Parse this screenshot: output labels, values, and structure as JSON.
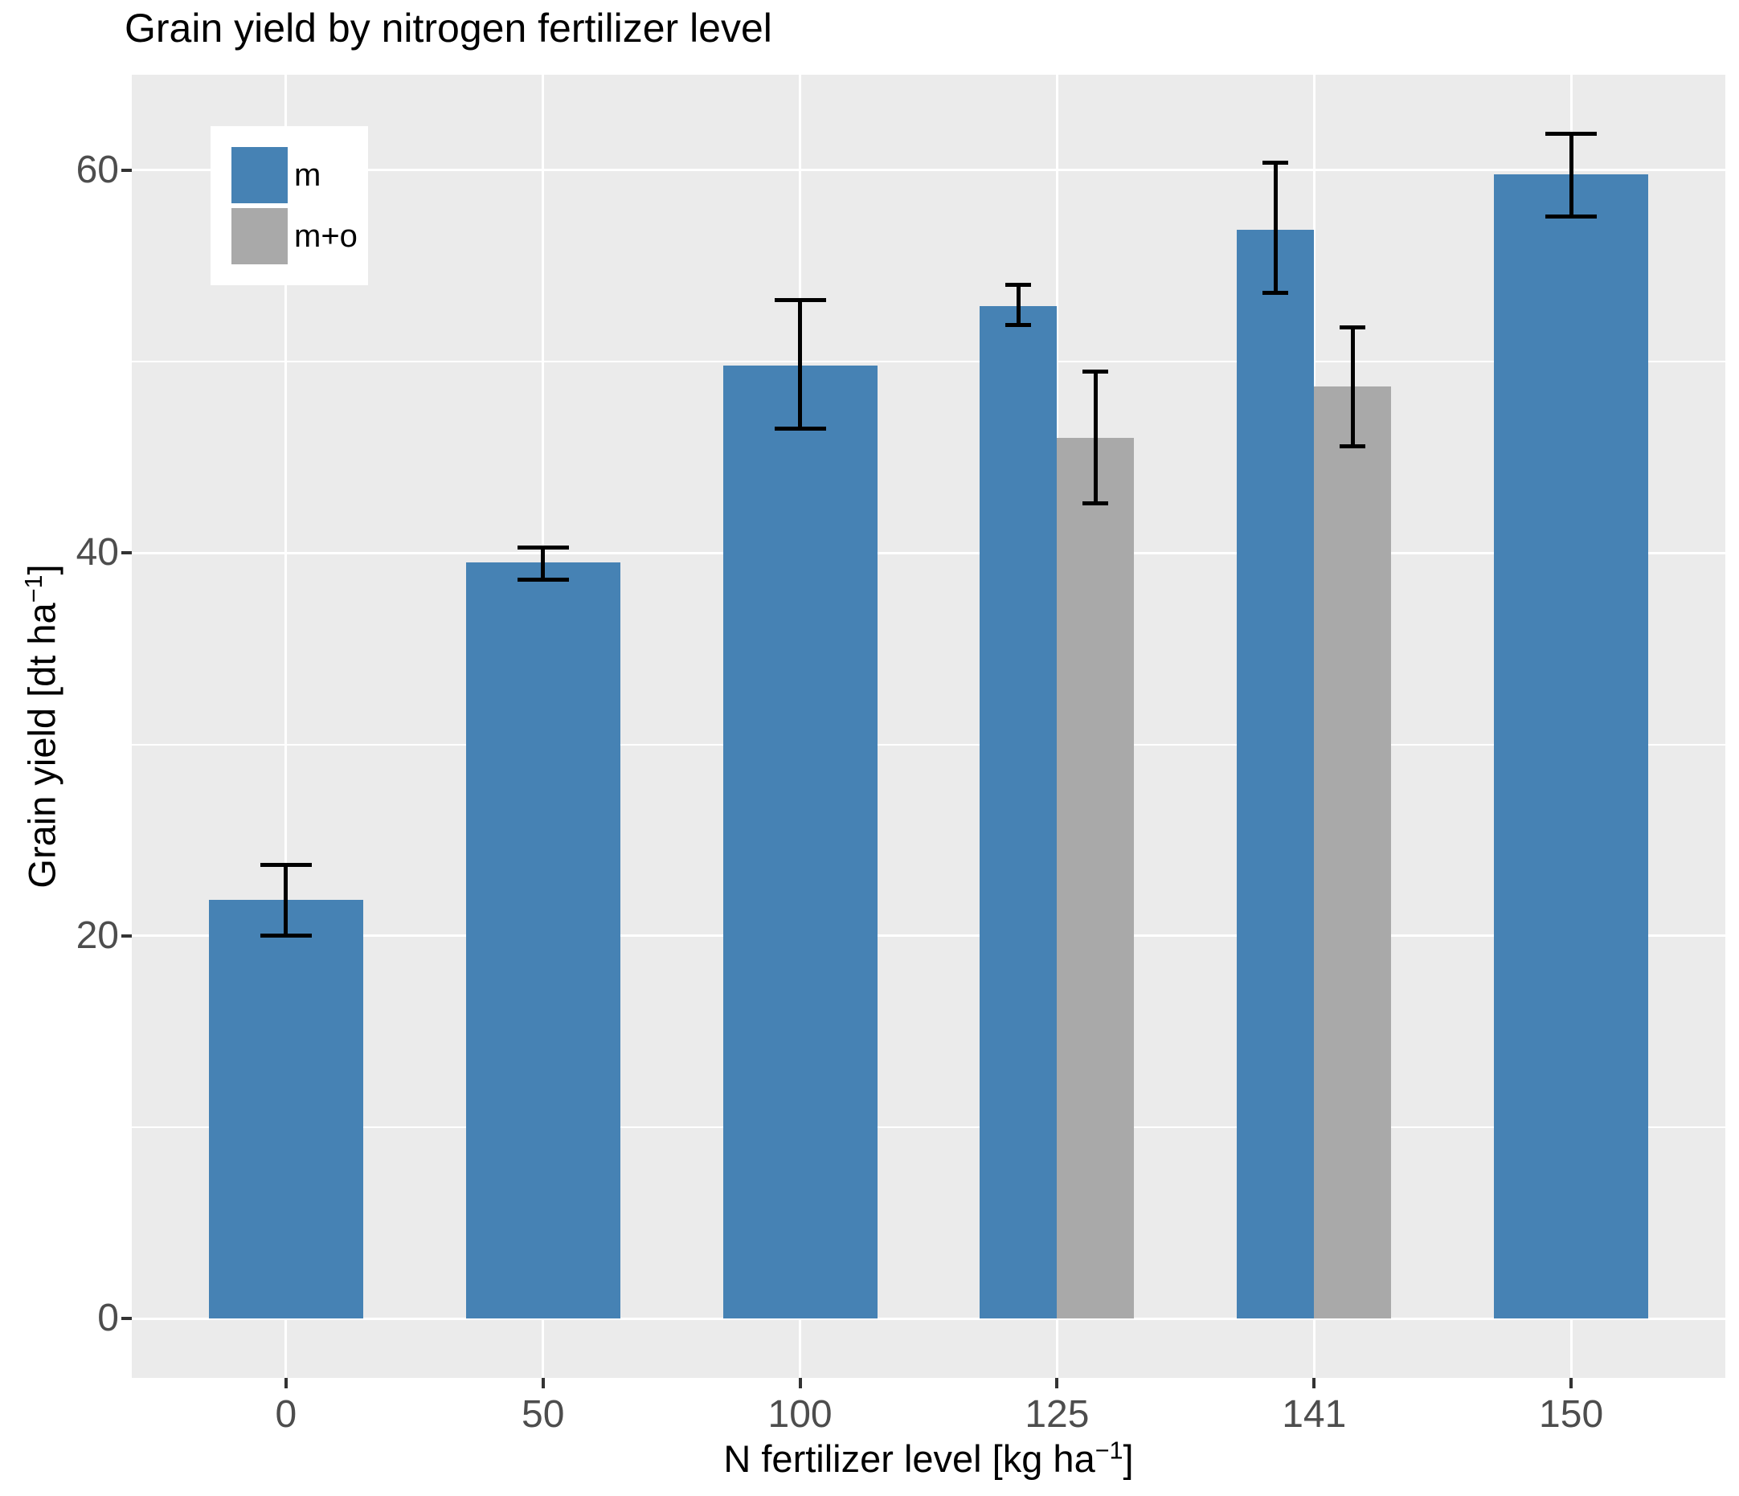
{
  "title": "Grain yield by nitrogen fertilizer level",
  "y_axis": {
    "title_prefix": "Grain yield [dt ha",
    "title_sup": "−1",
    "title_suffix": "]",
    "tick_labels": [
      "0",
      "20",
      "40",
      "60"
    ],
    "tick_values": [
      0,
      20,
      40,
      60
    ],
    "minor_values": [
      10,
      30,
      50
    ]
  },
  "x_axis": {
    "title_prefix": "N fertilizer level [kg ha",
    "title_sup": "−1",
    "title_suffix": "]",
    "tick_labels": [
      "0",
      "50",
      "100",
      "125",
      "141",
      "150"
    ]
  },
  "legend": {
    "items": [
      {
        "label": "m",
        "color": "#4682B4"
      },
      {
        "label": "m+o",
        "color": "#A9A9A9"
      }
    ]
  },
  "colors": {
    "bar_blue": "#4682B4",
    "bar_gray": "#A9A9A9",
    "panel_bg": "#EBEBEB",
    "grid": "#FFFFFF",
    "error_bar": "#000000",
    "tick_mark": "#333333",
    "tick_text": "#4D4D4D",
    "title_text": "#000000",
    "background": "#FFFFFF"
  },
  "chart_data": {
    "type": "bar",
    "title": "Grain yield by nitrogen fertilizer level",
    "xlabel": "N fertilizer level [kg ha⁻¹]",
    "ylabel": "Grain yield [dt ha⁻¹]",
    "categories": [
      "0",
      "50",
      "100",
      "125",
      "141",
      "150"
    ],
    "series": [
      {
        "name": "m",
        "color": "#4682B4",
        "values": [
          21.9,
          39.5,
          49.8,
          52.9,
          56.9,
          59.8
        ],
        "error_low": [
          20.0,
          38.6,
          46.5,
          51.9,
          53.6,
          57.6
        ],
        "error_high": [
          23.7,
          40.3,
          53.2,
          54.0,
          60.4,
          61.9
        ]
      },
      {
        "name": "m+o",
        "color": "#A9A9A9",
        "values": [
          null,
          null,
          null,
          46.0,
          48.7,
          null
        ],
        "error_low": [
          null,
          null,
          null,
          42.6,
          45.6,
          null
        ],
        "error_high": [
          null,
          null,
          null,
          49.5,
          51.8,
          null
        ]
      }
    ],
    "ylim": [
      0,
      62
    ],
    "yticks": [
      0,
      20,
      40,
      60
    ],
    "grid": "white major+minor horizontal, major vertical at category centers, gray panel",
    "legend_position": "inside top-left",
    "error_bars": true
  }
}
